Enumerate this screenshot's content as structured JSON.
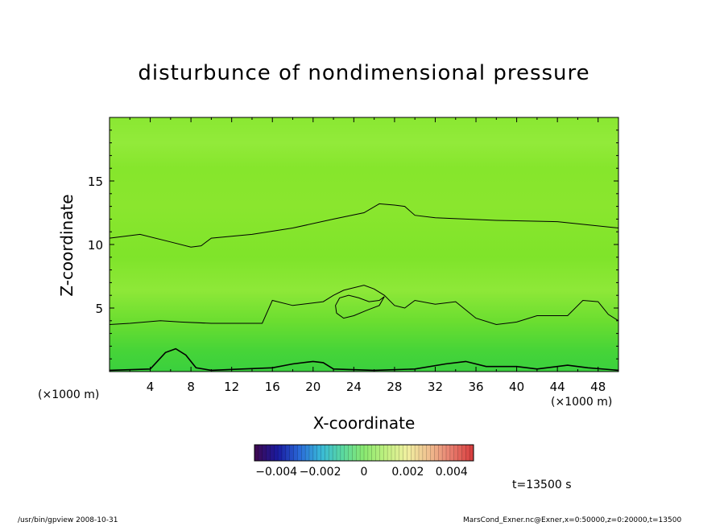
{
  "chart_data": {
    "type": "heatmap",
    "title": "disturbunce of nondimensional pressure",
    "xlabel": "X-coordinate",
    "ylabel": "Z-coordinate",
    "x_unit_left": "(×1000 m)",
    "x_unit_right": "(×1000 m)",
    "x_ticks": [
      "4",
      "8",
      "12",
      "16",
      "20",
      "24",
      "28",
      "32",
      "36",
      "40",
      "44",
      "48"
    ],
    "x_tick_values": [
      4,
      8,
      12,
      16,
      20,
      24,
      28,
      32,
      36,
      40,
      44,
      48
    ],
    "y_ticks": [
      "5",
      "10",
      "15"
    ],
    "y_tick_values": [
      5,
      10,
      15
    ],
    "xlim": [
      0,
      50
    ],
    "ylim": [
      0,
      20
    ],
    "colorbar": {
      "labels": [
        "−0.004",
        "−0.002",
        "0",
        "0.002",
        "0.004"
      ],
      "label_values": [
        -0.004,
        -0.002,
        0,
        0.002,
        0.004
      ],
      "range": [
        -0.005,
        0.005
      ],
      "colors": [
        "#3c0a55",
        "#1a1aa0",
        "#2a6ad8",
        "#38b8d8",
        "#5ad8a0",
        "#8ae870",
        "#c0f080",
        "#f0f0a0",
        "#f0c090",
        "#e88070",
        "#d84040"
      ]
    },
    "field_color": "#7fe82a",
    "contours": [
      {
        "name": "upper",
        "points": [
          [
            0,
            10.5
          ],
          [
            3,
            10.8
          ],
          [
            6,
            10.2
          ],
          [
            8,
            9.8
          ],
          [
            9,
            9.9
          ],
          [
            10,
            10.5
          ],
          [
            14,
            10.8
          ],
          [
            18,
            11.3
          ],
          [
            22,
            12
          ],
          [
            25,
            12.5
          ],
          [
            26.5,
            13.2
          ],
          [
            28,
            13.1
          ],
          [
            29,
            13
          ],
          [
            30,
            12.3
          ],
          [
            32,
            12.1
          ],
          [
            38,
            11.9
          ],
          [
            44,
            11.8
          ],
          [
            50,
            11.3
          ]
        ]
      },
      {
        "name": "lower",
        "points": [
          [
            0,
            3.7
          ],
          [
            2,
            3.8
          ],
          [
            5,
            4.0
          ],
          [
            7,
            3.9
          ],
          [
            10,
            3.8
          ],
          [
            15,
            3.8
          ],
          [
            16,
            5.6
          ],
          [
            18,
            5.2
          ],
          [
            21,
            5.5
          ],
          [
            22,
            6.0
          ],
          [
            23,
            6.4
          ],
          [
            25,
            6.8
          ],
          [
            26,
            6.5
          ],
          [
            27,
            6.0
          ],
          [
            28,
            5.2
          ],
          [
            29,
            5.0
          ],
          [
            30,
            5.6
          ],
          [
            32,
            5.3
          ],
          [
            34,
            5.5
          ],
          [
            36,
            4.2
          ],
          [
            38,
            3.7
          ],
          [
            40,
            3.9
          ],
          [
            42,
            4.4
          ],
          [
            45,
            4.4
          ],
          [
            46.5,
            5.6
          ],
          [
            48,
            5.5
          ],
          [
            49,
            4.5
          ],
          [
            50,
            4.0
          ]
        ]
      },
      {
        "name": "loop",
        "points": [
          [
            22.3,
            4.6
          ],
          [
            22.2,
            5.2
          ],
          [
            22.6,
            5.8
          ],
          [
            23.5,
            6.0
          ],
          [
            24.5,
            5.8
          ],
          [
            25.5,
            5.5
          ],
          [
            26.5,
            5.6
          ],
          [
            27,
            5.9
          ],
          [
            26.5,
            5.2
          ],
          [
            25.2,
            4.8
          ],
          [
            24,
            4.4
          ],
          [
            23,
            4.2
          ],
          [
            22.3,
            4.6
          ]
        ]
      },
      {
        "name": "bottom",
        "points": [
          [
            0,
            0.1
          ],
          [
            4,
            0.2
          ],
          [
            5.5,
            1.5
          ],
          [
            6.5,
            1.8
          ],
          [
            7.5,
            1.3
          ],
          [
            8.5,
            0.3
          ],
          [
            10,
            0.1
          ],
          [
            13,
            0.2
          ],
          [
            16,
            0.3
          ],
          [
            18,
            0.6
          ],
          [
            20,
            0.8
          ],
          [
            21,
            0.7
          ],
          [
            22,
            0.2
          ],
          [
            26,
            0.1
          ],
          [
            30,
            0.2
          ],
          [
            33,
            0.6
          ],
          [
            35,
            0.8
          ],
          [
            37,
            0.4
          ],
          [
            40,
            0.4
          ],
          [
            42,
            0.2
          ],
          [
            45,
            0.5
          ],
          [
            47,
            0.3
          ],
          [
            50,
            0.1
          ]
        ]
      }
    ]
  },
  "annotations": {
    "time": "t=13500 s",
    "footer_left": "/usr/bin/gpview   2008-10-31",
    "footer_right": "MarsCond_Exner.nc@Exner,x=0:50000,z=0:20000,t=13500"
  }
}
